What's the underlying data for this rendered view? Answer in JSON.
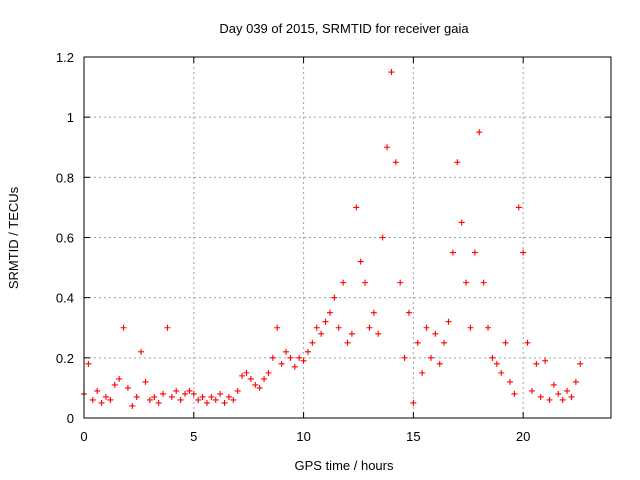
{
  "chart_data": {
    "type": "scatter",
    "title": "Day 039 of 2015, SRMTID for receiver gaia",
    "xlabel": "GPS time / hours",
    "ylabel": "SRMTID / TECUs",
    "xlim": [
      0,
      24
    ],
    "ylim": [
      0,
      1.2
    ],
    "x_ticks": [
      0,
      5,
      10,
      15,
      20
    ],
    "x_tick_labels": [
      "0",
      "5",
      "10",
      "15",
      "20"
    ],
    "y_ticks": [
      0,
      0.2,
      0.4,
      0.6,
      0.8,
      1,
      1.2
    ],
    "y_tick_labels": [
      "0",
      "0.2",
      "0.4",
      "0.6",
      "0.8",
      "1",
      "1.2"
    ],
    "grid": true,
    "marker": "+",
    "series": [
      {
        "name": "gaia",
        "color": "#ff0000",
        "x": [
          0.0,
          0.2,
          0.4,
          0.6,
          0.8,
          1.0,
          1.2,
          1.4,
          1.6,
          1.8,
          2.0,
          2.2,
          2.4,
          2.6,
          2.8,
          3.0,
          3.2,
          3.4,
          3.6,
          3.8,
          4.0,
          4.2,
          4.4,
          4.6,
          4.8,
          5.0,
          5.2,
          5.4,
          5.6,
          5.8,
          6.0,
          6.2,
          6.4,
          6.6,
          6.8,
          7.0,
          7.2,
          7.4,
          7.6,
          7.8,
          8.0,
          8.2,
          8.4,
          8.6,
          8.8,
          9.0,
          9.2,
          9.4,
          9.6,
          9.8,
          10.0,
          10.2,
          10.4,
          10.6,
          10.8,
          11.0,
          11.2,
          11.4,
          11.6,
          11.8,
          12.0,
          12.2,
          12.4,
          12.6,
          12.8,
          13.0,
          13.2,
          13.4,
          13.6,
          13.8,
          14.0,
          14.2,
          14.4,
          14.6,
          14.8,
          15.0,
          15.2,
          15.4,
          15.6,
          15.8,
          16.0,
          16.2,
          16.4,
          16.6,
          16.8,
          17.0,
          17.2,
          17.4,
          17.6,
          17.8,
          18.0,
          18.2,
          18.4,
          18.6,
          18.8,
          19.0,
          19.2,
          19.4,
          19.6,
          19.8,
          20.0,
          20.2,
          20.4,
          20.6,
          20.8,
          21.0,
          21.2,
          21.4,
          21.6,
          21.8,
          22.0,
          22.2,
          22.4,
          22.6
        ],
        "y": [
          0.08,
          0.18,
          0.06,
          0.09,
          0.05,
          0.07,
          0.06,
          0.11,
          0.13,
          0.3,
          0.1,
          0.04,
          0.07,
          0.22,
          0.12,
          0.06,
          0.07,
          0.05,
          0.08,
          0.3,
          0.07,
          0.09,
          0.06,
          0.08,
          0.09,
          0.08,
          0.06,
          0.07,
          0.05,
          0.07,
          0.06,
          0.08,
          0.05,
          0.07,
          0.06,
          0.09,
          0.14,
          0.15,
          0.13,
          0.11,
          0.1,
          0.13,
          0.15,
          0.2,
          0.3,
          0.18,
          0.22,
          0.2,
          0.17,
          0.2,
          0.19,
          0.22,
          0.25,
          0.3,
          0.28,
          0.32,
          0.35,
          0.4,
          0.3,
          0.45,
          0.25,
          0.28,
          0.7,
          0.52,
          0.45,
          0.3,
          0.35,
          0.28,
          0.6,
          0.9,
          1.15,
          0.85,
          0.45,
          0.2,
          0.35,
          0.05,
          0.25,
          0.15,
          0.3,
          0.2,
          0.28,
          0.18,
          0.25,
          0.32,
          0.55,
          0.85,
          0.65,
          0.45,
          0.3,
          0.55,
          0.95,
          0.45,
          0.3,
          0.2,
          0.18,
          0.15,
          0.25,
          0.12,
          0.08,
          0.7,
          0.55,
          0.25,
          0.09,
          0.18,
          0.07,
          0.19,
          0.06,
          0.11,
          0.08,
          0.06,
          0.09,
          0.07,
          0.12,
          0.18
        ]
      }
    ]
  }
}
